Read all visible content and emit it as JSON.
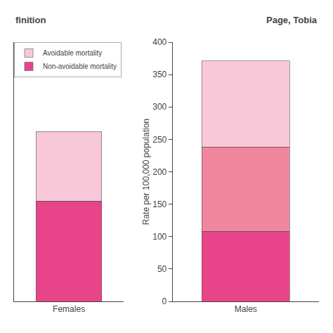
{
  "chart_data": {
    "type": "bar",
    "stacked": true,
    "categories": [
      "Females",
      "Males"
    ],
    "series": [
      {
        "name": "Non-avoidable mortality",
        "color": "#E8448A",
        "values": [
          155,
          108
        ]
      },
      {
        "color": "#F0879F",
        "values": [
          0,
          130
        ]
      },
      {
        "name": "Avoidable mortality",
        "color": "#F9C8D8",
        "values": [
          107,
          133
        ]
      }
    ],
    "ylim": [
      0,
      400
    ],
    "yticks": [
      0,
      50,
      100,
      150,
      200,
      250,
      300,
      350,
      400
    ],
    "ylabel": "Rate per 100,000 population",
    "annotations": [
      "finition",
      "Page, Tobia"
    ],
    "legend": "upper left",
    "grid": false
  }
}
